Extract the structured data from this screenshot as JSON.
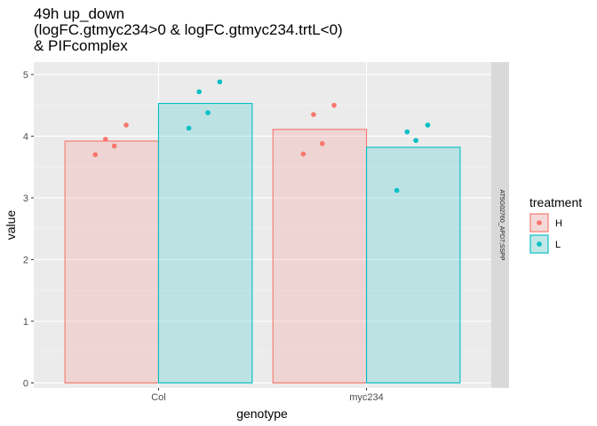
{
  "chart_data": {
    "type": "bar",
    "title": [
      "49h up_down",
      "(logFC.gtmyc234>0 & logFC.gtmyc234.trtL<0)",
      "& PIFcomplex"
    ],
    "xlabel": "genotype",
    "ylabel": "value",
    "categories": [
      "Col",
      "myc234"
    ],
    "ylim": [
      -0.08,
      5.2
    ],
    "yticks": [
      0,
      1,
      2,
      3,
      4,
      5
    ],
    "facet_label": "AT5G02760_APD7;SSPP",
    "legend": {
      "title": "treatment",
      "position": "right"
    },
    "series": [
      {
        "name": "H",
        "color": "#F8766D",
        "fill": "#F8766D",
        "values": [
          3.92,
          4.11
        ]
      },
      {
        "name": "L",
        "color": "#00BFC4",
        "fill": "#00BFC4",
        "values": [
          4.53,
          3.82
        ]
      }
    ],
    "points": [
      {
        "category": "Col",
        "series": "H",
        "values": [
          3.7,
          3.84,
          3.95,
          4.18
        ]
      },
      {
        "category": "Col",
        "series": "L",
        "values": [
          4.13,
          4.38,
          4.72,
          4.88
        ]
      },
      {
        "category": "myc234",
        "series": "H",
        "values": [
          3.71,
          3.88,
          4.35,
          4.5
        ]
      },
      {
        "category": "myc234",
        "series": "L",
        "values": [
          3.12,
          3.93,
          4.07,
          4.18
        ]
      }
    ],
    "grid": true
  }
}
